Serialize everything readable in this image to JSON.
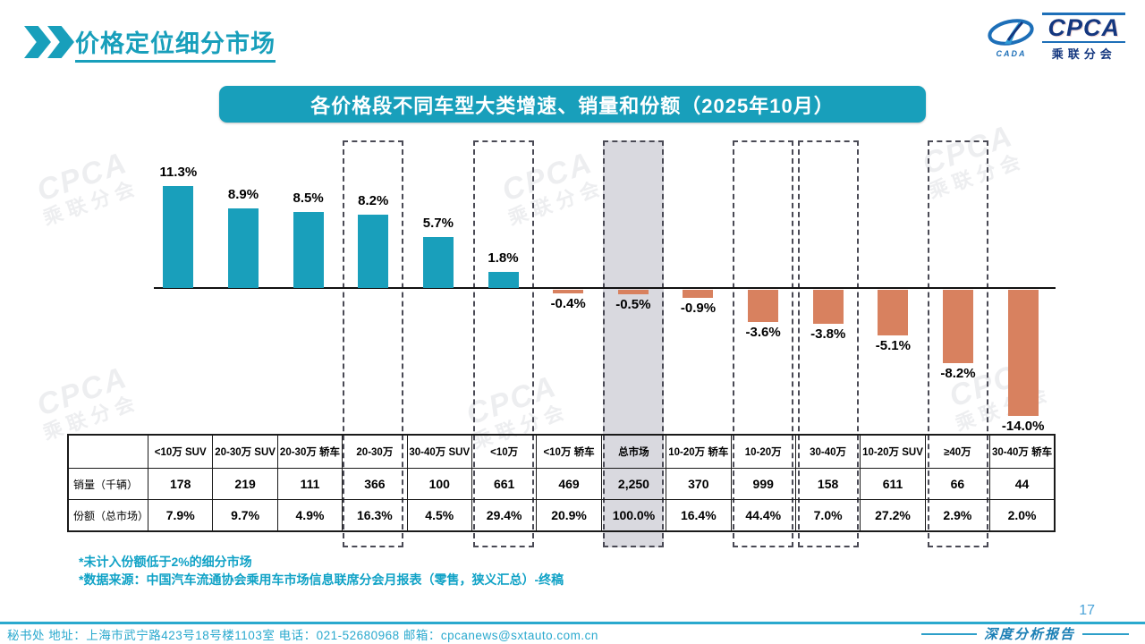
{
  "page": {
    "title": "价格定位细分市场",
    "page_number": "17",
    "report_label": "深度分析报告",
    "footer_contact": "秘书处  地址：上海市武宁路423号18号楼1103室 电话：021-52680968  邮箱：cpcanews@sxtauto.com.cn"
  },
  "logo": {
    "cpca": "CPCA",
    "sub": "乘联分会",
    "cada": "CADA"
  },
  "banner": {
    "title": "各价格段不同车型大类增速、销量和份额（2025年10月）"
  },
  "notes": [
    "*未计入份额低于2%的细分市场",
    "*数据来源：中国汽车流通协会乘用车市场信息联席分会月报表（零售，狭义汇总）-终稿"
  ],
  "watermark": {
    "line1": "CPCA",
    "line2": "乘联分会"
  },
  "table": {
    "row_labels": [
      "销量（千辆）",
      "份额（总市场）"
    ]
  },
  "chart_data": {
    "type": "bar",
    "title": "各价格段不同车型大类增速、销量和份额（2025年10月）",
    "categories": [
      "<10万 SUV",
      "20-30万 SUV",
      "20-30万 轿车",
      "20-30万",
      "30-40万 SUV",
      "<10万",
      "<10万 轿车",
      "总市场",
      "10-20万 轿车",
      "10-20万",
      "30-40万",
      "10-20万 SUV",
      "≥40万",
      "30-40万 轿车"
    ],
    "growth_pct": [
      11.3,
      8.9,
      8.5,
      8.2,
      5.7,
      1.8,
      -0.4,
      -0.5,
      -0.9,
      -3.6,
      -3.8,
      -5.1,
      -8.2,
      -14.0
    ],
    "growth_labels": [
      "11.3%",
      "8.9%",
      "8.5%",
      "8.2%",
      "5.7%",
      "1.8%",
      "-0.4%",
      "-0.5%",
      "-0.9%",
      "-3.6%",
      "-3.8%",
      "-5.1%",
      "-8.2%",
      "-14.0%"
    ],
    "sales_thousand": [
      "178",
      "219",
      "111",
      "366",
      "100",
      "661",
      "469",
      "2,250",
      "370",
      "999",
      "158",
      "611",
      "66",
      "44"
    ],
    "share_labels": [
      "7.9%",
      "9.7%",
      "4.9%",
      "16.3%",
      "4.5%",
      "29.4%",
      "20.9%",
      "100.0%",
      "16.4%",
      "44.4%",
      "7.0%",
      "27.2%",
      "2.9%",
      "2.0%"
    ],
    "dashed_indices": [
      3,
      5,
      9,
      10,
      12
    ],
    "total_index": 7,
    "ylim": [
      -14.0,
      11.3
    ],
    "grid": false,
    "legend": "none",
    "colors": {
      "positive": "#199FBB",
      "negative": "#D8815F",
      "highlight_fill": "#D9D9DF",
      "dashed_border": "#4A4A55",
      "accent_teal": "#189FBB"
    }
  }
}
